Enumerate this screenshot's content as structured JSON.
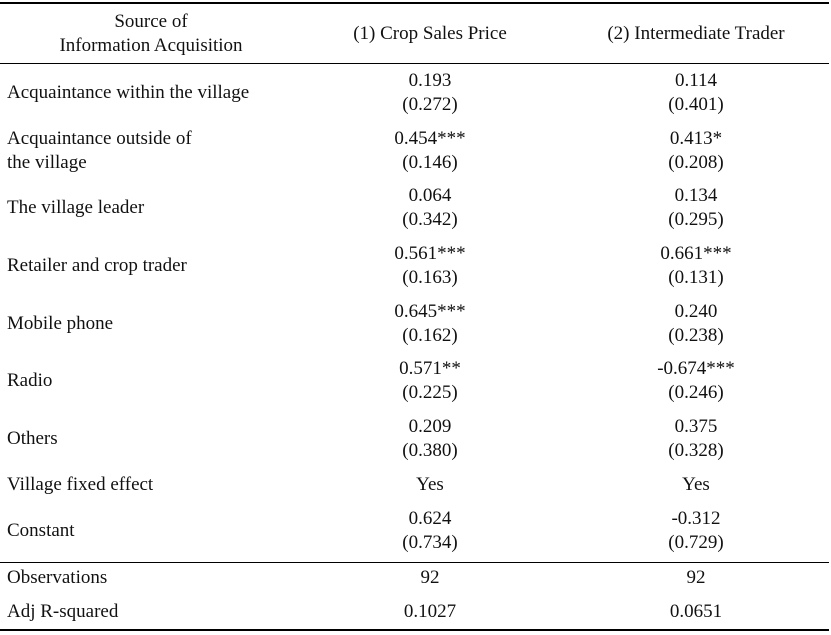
{
  "header": {
    "col0": [
      "Source of",
      "Information Acquisition"
    ],
    "col1": "(1) Crop Sales Price",
    "col2": "(2) Intermediate Trader"
  },
  "rows": [
    {
      "label": [
        "Acquaintance within the village"
      ],
      "c1": [
        "0.193",
        "(0.272)"
      ],
      "c2": [
        "0.114",
        "(0.401)"
      ]
    },
    {
      "label": [
        "Acquaintance outside of",
        "the village"
      ],
      "c1": [
        "0.454***",
        "(0.146)"
      ],
      "c2": [
        "0.413*",
        "(0.208)"
      ]
    },
    {
      "label": [
        "The village leader"
      ],
      "c1": [
        "0.064",
        "(0.342)"
      ],
      "c2": [
        "0.134",
        "(0.295)"
      ]
    },
    {
      "label": [
        "Retailer and crop trader"
      ],
      "c1": [
        "0.561***",
        "(0.163)"
      ],
      "c2": [
        "0.661***",
        "(0.131)"
      ]
    },
    {
      "label": [
        "Mobile phone"
      ],
      "c1": [
        "0.645***",
        "(0.162)"
      ],
      "c2": [
        "0.240",
        "(0.238)"
      ]
    },
    {
      "label": [
        "Radio"
      ],
      "c1": [
        "0.571**",
        "(0.225)"
      ],
      "c2": [
        "-0.674***",
        "(0.246)"
      ]
    },
    {
      "label": [
        "Others"
      ],
      "c1": [
        "0.209",
        "(0.380)"
      ],
      "c2": [
        "0.375",
        "(0.328)"
      ]
    },
    {
      "label": [
        "Village fixed effect"
      ],
      "c1": [
        "Yes"
      ],
      "c2": [
        "Yes"
      ]
    },
    {
      "label": [
        "Constant"
      ],
      "c1": [
        "0.624",
        "(0.734)"
      ],
      "c2": [
        "-0.312",
        "(0.729)"
      ]
    }
  ],
  "stats": [
    {
      "label": [
        "Observations"
      ],
      "c1": [
        "92"
      ],
      "c2": [
        "92"
      ]
    },
    {
      "label": [
        "Adj R-squared"
      ],
      "c1": [
        "0.1027"
      ],
      "c2": [
        "0.0651"
      ]
    }
  ]
}
